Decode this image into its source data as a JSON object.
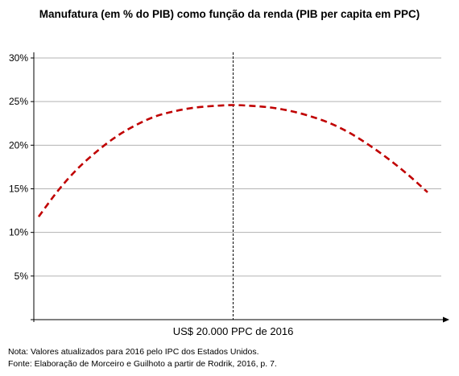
{
  "chart_data": {
    "type": "line",
    "title": "Manufatura (em % do PIB) como função da renda (PIB per capita em PPC)",
    "xlabel": "",
    "ylabel": "",
    "ylim": [
      0,
      30
    ],
    "y_ticks": [
      5,
      10,
      15,
      20,
      25,
      30
    ],
    "y_tick_labels": [
      "5%",
      "10%",
      "15%",
      "20%",
      "25%",
      "30%"
    ],
    "grid": "horizontal",
    "x": [
      0,
      1,
      2,
      3,
      4,
      5,
      6,
      7,
      8,
      9,
      10,
      11,
      12,
      13,
      14,
      15,
      16,
      17,
      18,
      19,
      20
    ],
    "series": [
      {
        "color": "#c00000",
        "style": "dashed",
        "values": [
          11.8,
          14.8,
          17.3,
          19.3,
          21.0,
          22.3,
          23.3,
          23.9,
          24.3,
          24.5,
          24.6,
          24.5,
          24.3,
          23.9,
          23.3,
          22.5,
          21.4,
          20.0,
          18.4,
          16.6,
          14.6
        ]
      }
    ],
    "vertical_marker": {
      "x": 10,
      "label": "US$ 20.000 PPC de 2016",
      "style": "dashed",
      "color": "#000000"
    }
  },
  "notes": {
    "nota": "Nota: Valores atualizados para 2016 pelo IPC dos Estados Unidos.",
    "fonte": "Fonte: Elaboração de Morceiro e Guilhoto a partir de Rodrik, 2016, p. 7."
  }
}
